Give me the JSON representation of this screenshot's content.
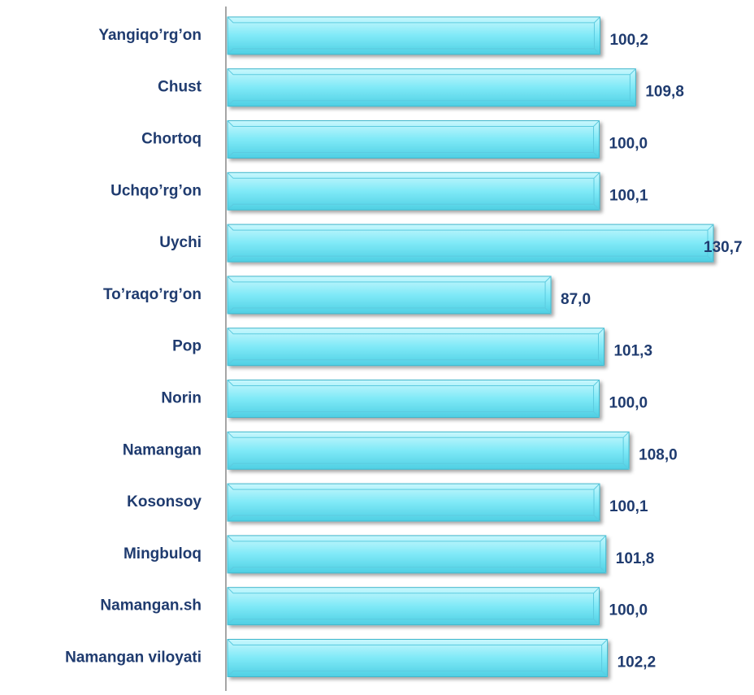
{
  "chart_data": {
    "type": "bar",
    "orientation": "horizontal",
    "categories": [
      "Yangiqo’rg’on",
      "Chust",
      "Chortoq",
      "Uchqo’rg’on",
      "Uychi",
      "To’raqo’rg’on",
      "Pop",
      "Norin",
      "Namangan",
      "Kosonsoy",
      "Mingbuloq",
      "Namangan.sh",
      "Namangan viloyati"
    ],
    "values": [
      100.2,
      109.8,
      100.0,
      100.1,
      130.7,
      87.0,
      101.3,
      100.0,
      108.0,
      100.1,
      101.8,
      100.0,
      102.2
    ],
    "value_labels": [
      "100,2",
      "109,8",
      "100,0",
      "100,1",
      "130,7",
      "87,0",
      "101,3",
      "100,0",
      "108,0",
      "100,1",
      "101,8",
      "100,0",
      "102,2"
    ],
    "color": "#7fe9f7",
    "label_color": "#1f3b6f"
  }
}
